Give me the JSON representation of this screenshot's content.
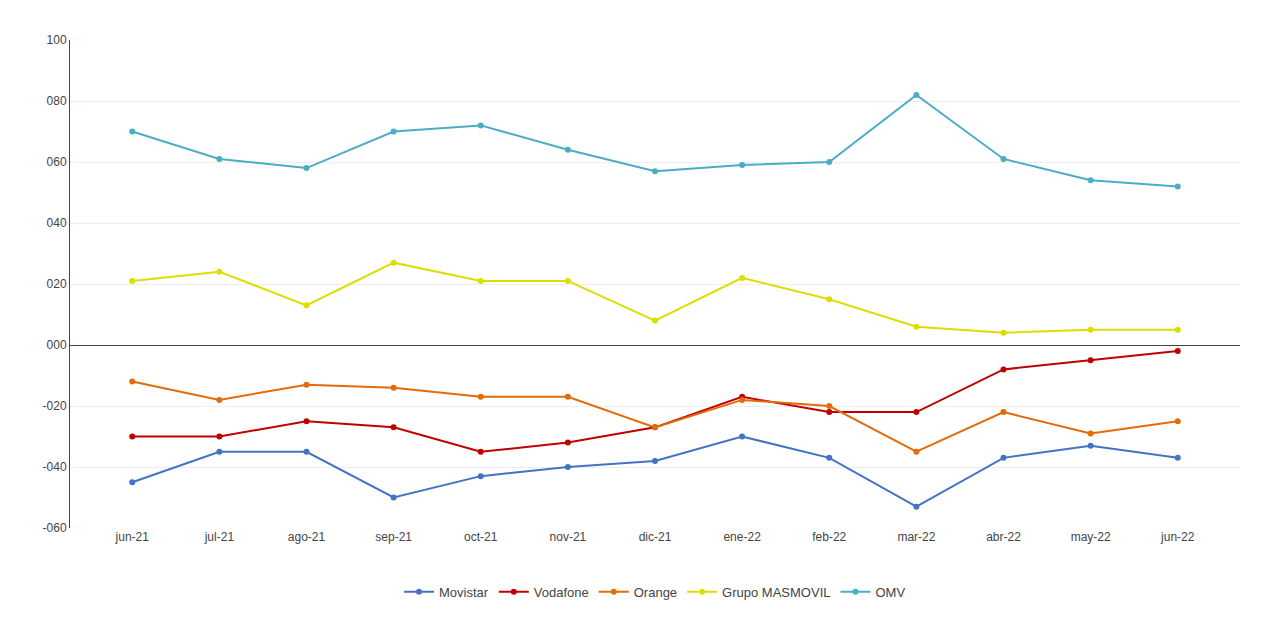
{
  "chart_data": {
    "type": "line",
    "categories": [
      "jun-21",
      "jul-21",
      "ago-21",
      "sep-21",
      "oct-21",
      "nov-21",
      "dic-21",
      "ene-22",
      "feb-22",
      "mar-22",
      "abr-22",
      "may-22",
      "jun-22"
    ],
    "series": [
      {
        "name": "Movistar",
        "color": "#4472C4",
        "values": [
          -45,
          -35,
          -35,
          -50,
          -43,
          -40,
          -38,
          -30,
          -37,
          -53,
          -37,
          -33,
          -37
        ]
      },
      {
        "name": "Vodafone",
        "color": "#C00000",
        "values": [
          -30,
          -30,
          -25,
          -27,
          -35,
          -32,
          -27,
          -17,
          -22,
          -22,
          -8,
          -5,
          -2
        ]
      },
      {
        "name": "Orange",
        "color": "#E36C09",
        "values": [
          -12,
          -18,
          -13,
          -14,
          -17,
          -17,
          -27,
          -18,
          -20,
          -35,
          -22,
          -29,
          -25
        ]
      },
      {
        "name": "Grupo MASMOVIL",
        "color": "#DDDD00",
        "values": [
          21,
          24,
          13,
          27,
          21,
          21,
          8,
          22,
          15,
          6,
          4,
          5,
          5
        ]
      },
      {
        "name": "OMV",
        "color": "#4BACC6",
        "values": [
          70,
          61,
          58,
          70,
          72,
          64,
          57,
          59,
          60,
          82,
          61,
          54,
          52
        ]
      }
    ],
    "ylim": [
      -60,
      100
    ],
    "yticks": [
      {
        "value": -60,
        "label": "-060"
      },
      {
        "value": -40,
        "label": "-040"
      },
      {
        "value": -20,
        "label": "-020"
      },
      {
        "value": 0,
        "label": "000"
      },
      {
        "value": 20,
        "label": "020"
      },
      {
        "value": 40,
        "label": "040"
      },
      {
        "value": 60,
        "label": "060"
      },
      {
        "value": 80,
        "label": "080"
      },
      100
    ],
    "grid": true,
    "legend": "bottom",
    "marker": "circle"
  }
}
